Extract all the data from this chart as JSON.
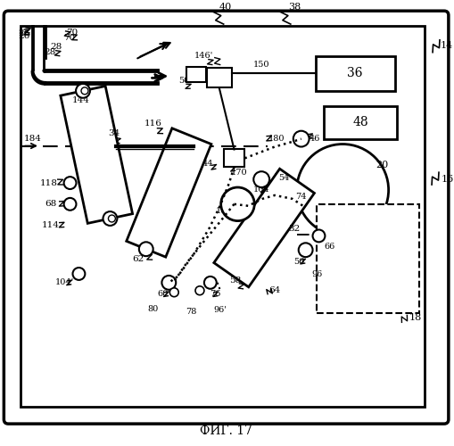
{
  "title": "ФИГ. 17",
  "bg_color": "#ffffff",
  "fig_width": 5.1,
  "fig_height": 5.0,
  "dpi": 100
}
